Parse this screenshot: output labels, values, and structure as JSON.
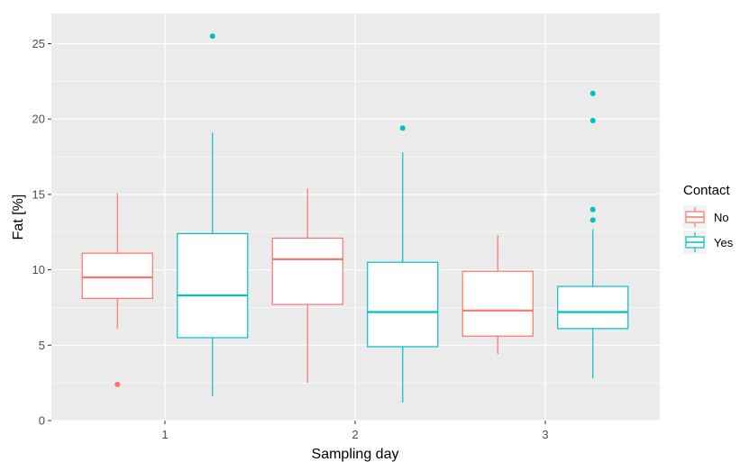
{
  "chart_data": {
    "type": "box",
    "xlabel": "Sampling day",
    "ylabel": "Fat [%]",
    "categories": [
      "1",
      "2",
      "3"
    ],
    "ylim": [
      0,
      27
    ],
    "yticks": [
      0,
      5,
      10,
      15,
      20,
      25
    ],
    "grid": true,
    "legend": {
      "title": "Contact",
      "placement": "right"
    },
    "series": [
      {
        "name": "No",
        "color": "#F8766D",
        "boxes": [
          {
            "category": "1",
            "lower_whisker": 6.1,
            "q1": 8.1,
            "median": 9.5,
            "q3": 11.1,
            "upper_whisker": 15.1,
            "outliers": [
              2.4
            ]
          },
          {
            "category": "2",
            "lower_whisker": 2.5,
            "q1": 7.7,
            "median": 10.7,
            "q3": 12.1,
            "upper_whisker": 15.4,
            "outliers": []
          },
          {
            "category": "3",
            "lower_whisker": 4.4,
            "q1": 5.6,
            "median": 7.3,
            "q3": 9.9,
            "upper_whisker": 12.3,
            "outliers": []
          }
        ]
      },
      {
        "name": "Yes",
        "color": "#00BFC4",
        "boxes": [
          {
            "category": "1",
            "lower_whisker": 1.6,
            "q1": 5.5,
            "median": 8.3,
            "q3": 12.4,
            "upper_whisker": 19.1,
            "outliers": [
              25.5
            ]
          },
          {
            "category": "2",
            "lower_whisker": 1.2,
            "q1": 4.9,
            "median": 7.2,
            "q3": 10.5,
            "upper_whisker": 17.8,
            "outliers": [
              19.4
            ]
          },
          {
            "category": "3",
            "lower_whisker": 2.8,
            "q1": 6.1,
            "median": 7.2,
            "q3": 8.9,
            "upper_whisker": 12.7,
            "outliers": [
              13.3,
              14.0,
              19.9,
              21.7
            ]
          }
        ]
      }
    ]
  }
}
